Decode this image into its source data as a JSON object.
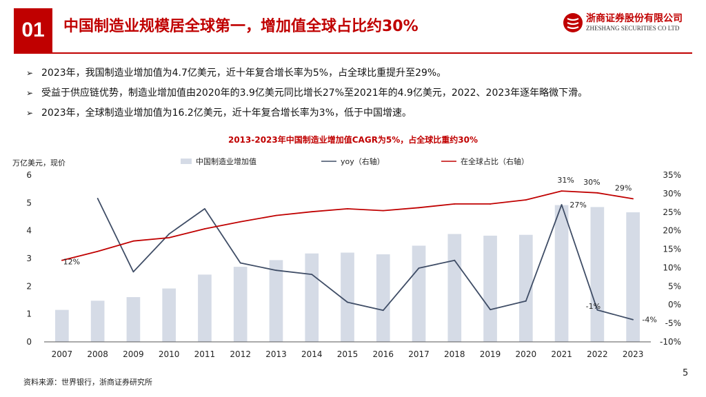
{
  "header": {
    "badge": "01",
    "title": "中国制造业规模居全球第一，增加值全球占比约30%",
    "logo_cn": "浙商证券股份有限公司",
    "logo_en": "ZHESHANG SECURITIES CO LTD",
    "brand_color": "#c00000"
  },
  "bullets": [
    {
      "marker": "➢",
      "text": "2023年，我国制造业增加值为4.7亿美元，近十年复合增长率为5%，占全球比重提升至29%。"
    },
    {
      "marker": "➢",
      "text": "受益于供应链优势，制造业增加值由2020年的3.9亿美元同比增长27%至2021年的4.9亿美元，2022、2023年逐年略微下滑。"
    },
    {
      "marker": "➢",
      "text": "2023年，全球制造业增加值为16.2亿美元，近十年复合增长率为3%，低于中国增速。"
    }
  ],
  "chart_title": "2013-2023年中国制造业增加值CAGR为5%，占全球比重约30%",
  "chart_data": {
    "type": "bar",
    "title": "2013-2023年中国制造业增加值CAGR为5%，占全球比重约30%",
    "ylabel_left": "万亿美元，现价",
    "categories": [
      "2007",
      "2008",
      "2009",
      "2010",
      "2011",
      "2012",
      "2013",
      "2014",
      "2015",
      "2016",
      "2017",
      "2018",
      "2019",
      "2020",
      "2021",
      "2022",
      "2023"
    ],
    "ylim_left": [
      0,
      6
    ],
    "yticks_left": [
      "0",
      "1",
      "2",
      "3",
      "4",
      "5",
      "6"
    ],
    "ylim_right": [
      -10,
      35
    ],
    "yticks_right": [
      "-10%",
      "-5%",
      "0%",
      "5%",
      "10%",
      "15%",
      "20%",
      "25%",
      "30%",
      "35%"
    ],
    "legend_position": "top",
    "series": [
      {
        "name": "中国制造业增加值",
        "kind": "bar",
        "axis": "left",
        "color": "#d5dbe6",
        "values": [
          1.15,
          1.48,
          1.61,
          1.92,
          2.42,
          2.7,
          2.94,
          3.18,
          3.21,
          3.15,
          3.46,
          3.88,
          3.82,
          3.85,
          4.92,
          4.85,
          4.66
        ]
      },
      {
        "name": "yoy（右轴）",
        "kind": "line",
        "axis": "right",
        "color": "#3f4d66",
        "values": [
          null,
          28.7,
          8.9,
          19.1,
          25.9,
          11.3,
          9.3,
          8.2,
          0.7,
          -1.5,
          9.9,
          12.0,
          -1.3,
          1.0,
          27.0,
          -1.4,
          -4.0
        ]
      },
      {
        "name": "在全球占比（右轴）",
        "kind": "line",
        "axis": "right",
        "color": "#c00000",
        "values": [
          12.0,
          14.4,
          17.2,
          18.1,
          20.5,
          22.4,
          24.1,
          25.1,
          25.9,
          25.4,
          26.2,
          27.2,
          27.2,
          28.3,
          30.7,
          30.2,
          28.6
        ]
      }
    ],
    "annotations": [
      {
        "text": "12%",
        "series": "在全球占比（右轴）",
        "category": "2007"
      },
      {
        "text": "31%",
        "series": "在全球占比（右轴）",
        "category": "2021"
      },
      {
        "text": "30%",
        "series": "在全球占比（右轴）",
        "category": "2022"
      },
      {
        "text": "29%",
        "series": "在全球占比（右轴）",
        "category": "2023"
      },
      {
        "text": "27%",
        "series": "yoy（右轴）",
        "category": "2021"
      },
      {
        "text": "-1%",
        "series": "yoy（右轴）",
        "category": "2022"
      },
      {
        "text": "-4%",
        "series": "yoy（右轴）",
        "category": "2023"
      }
    ]
  },
  "footer": {
    "source": "资料来源：世界银行，浙商证券研究所",
    "page_number": "5"
  }
}
